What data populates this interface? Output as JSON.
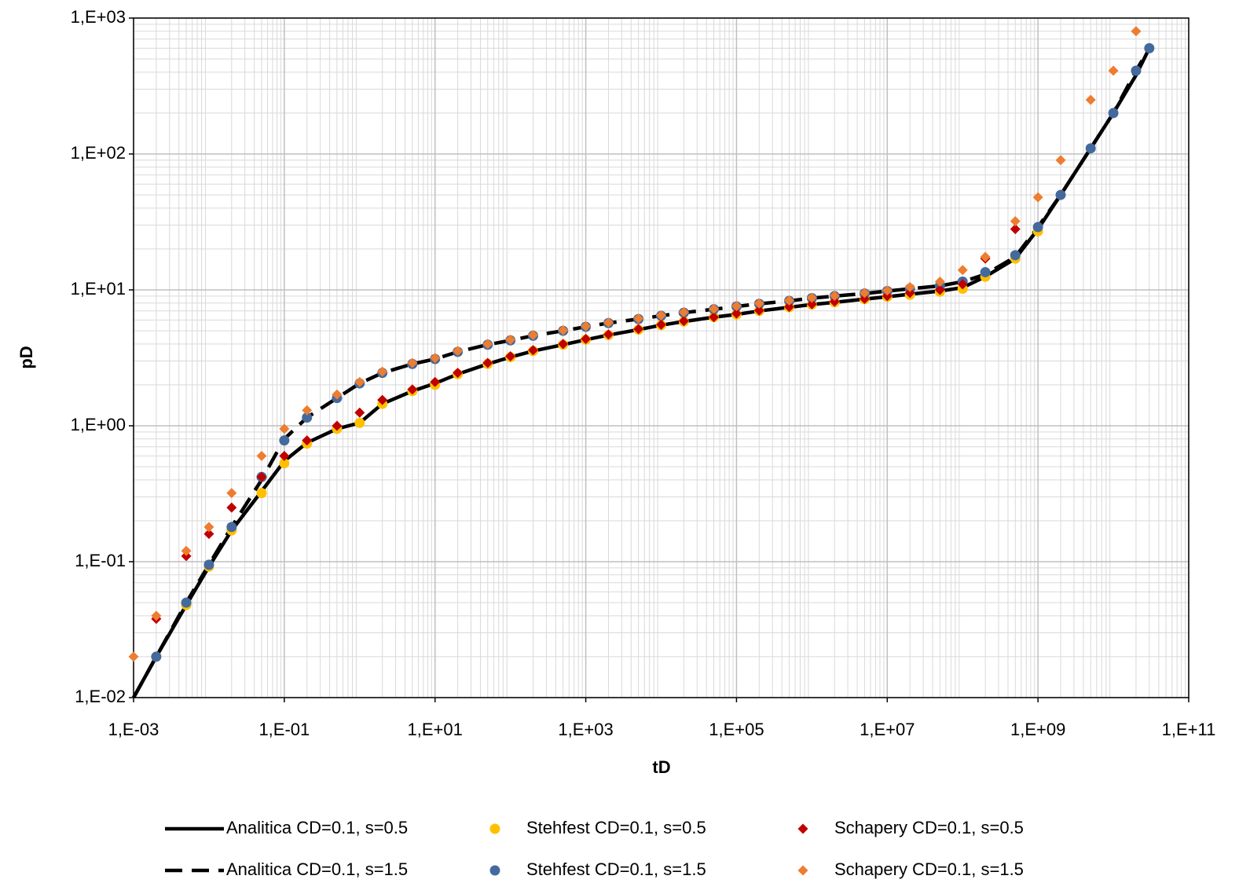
{
  "chart_data": {
    "type": "scatter",
    "x_label": "tD",
    "y_label": "pD",
    "xscale": "log",
    "yscale": "log",
    "grid": true,
    "xlim": [
      0.001,
      100000000000
    ],
    "ylim": [
      0.01,
      1000
    ],
    "xticks": [
      {
        "value": 0.001,
        "label": "1,E-03"
      },
      {
        "value": 0.1,
        "label": "1,E-01"
      },
      {
        "value": 10,
        "label": "1,E+01"
      },
      {
        "value": 1000,
        "label": "1,E+03"
      },
      {
        "value": 100000,
        "label": "1,E+05"
      },
      {
        "value": 10000000,
        "label": "1,E+07"
      },
      {
        "value": 1000000000,
        "label": "1,E+09"
      },
      {
        "value": 100000000000,
        "label": "1,E+11"
      }
    ],
    "yticks": [
      {
        "value": 0.01,
        "label": "1,E-02"
      },
      {
        "value": 0.1,
        "label": "1,E-01"
      },
      {
        "value": 1,
        "label": "1,E+00"
      },
      {
        "value": 10,
        "label": "1,E+01"
      },
      {
        "value": 100,
        "label": "1,E+02"
      },
      {
        "value": 1000,
        "label": "1,E+03"
      }
    ],
    "x": [
      0.001,
      0.002,
      0.005,
      0.01,
      0.02,
      0.05,
      0.1,
      0.2,
      0.5,
      1,
      2,
      5,
      10,
      20,
      50,
      100,
      200,
      500,
      1000,
      2000,
      5000,
      10000,
      20000,
      50000,
      100000,
      200000,
      500000,
      1000000,
      2000000,
      5000000,
      10000000,
      20000000,
      50000000,
      100000000,
      200000000,
      500000000,
      1000000000,
      2000000000,
      5000000000,
      10000000000,
      20000000000,
      30000000000
    ],
    "series": [
      {
        "name": "Analitica CD=0.1, s=0.5",
        "style": "solid",
        "color": "#000000",
        "values": [
          0.01,
          0.02,
          0.048,
          0.092,
          0.17,
          0.33,
          0.55,
          0.75,
          0.95,
          1.05,
          1.45,
          1.8,
          2.05,
          2.4,
          2.85,
          3.2,
          3.55,
          3.95,
          4.3,
          4.65,
          5.1,
          5.5,
          5.85,
          6.3,
          6.6,
          7.0,
          7.45,
          7.8,
          8.1,
          8.55,
          8.9,
          9.3,
          9.8,
          10.4,
          12.5,
          17,
          28,
          50,
          110,
          200,
          380,
          600
        ]
      },
      {
        "name": "Analitica CD=0.1, s=1.5",
        "style": "dashed",
        "color": "#000000",
        "values": [
          0.01,
          0.02,
          0.05,
          0.095,
          0.18,
          0.4,
          0.8,
          1.15,
          1.6,
          2.05,
          2.45,
          2.85,
          3.1,
          3.5,
          3.95,
          4.25,
          4.6,
          5.0,
          5.35,
          5.7,
          6.1,
          6.45,
          6.8,
          7.2,
          7.55,
          7.9,
          8.3,
          8.7,
          9.0,
          9.4,
          9.8,
          10.2,
          10.7,
          11.5,
          13.0,
          17.5,
          29,
          50,
          110,
          200,
          410,
          600
        ]
      },
      {
        "name": "Stehfest CD=0.1, s=0.5",
        "style": "circle",
        "color": "#ffc000",
        "values": [
          null,
          0.02,
          0.048,
          0.092,
          0.17,
          0.32,
          0.53,
          0.74,
          0.95,
          1.05,
          1.45,
          1.8,
          2.0,
          2.4,
          2.85,
          3.2,
          3.55,
          3.95,
          4.3,
          4.65,
          5.1,
          5.5,
          5.85,
          6.3,
          6.6,
          7.0,
          7.45,
          7.8,
          8.1,
          8.55,
          8.9,
          9.2,
          9.7,
          10.2,
          12.5,
          17,
          27,
          null,
          null,
          null,
          null,
          null
        ]
      },
      {
        "name": "Stehfest CD=0.1, s=1.5",
        "style": "circle",
        "color": "#44699c",
        "values": [
          null,
          0.02,
          0.05,
          0.095,
          0.18,
          0.42,
          0.78,
          1.15,
          1.6,
          2.05,
          2.45,
          2.85,
          3.1,
          3.5,
          3.95,
          4.25,
          4.6,
          5.0,
          5.35,
          5.7,
          6.1,
          6.45,
          6.8,
          7.2,
          7.55,
          7.9,
          8.3,
          8.7,
          9.0,
          9.4,
          9.8,
          10.2,
          10.7,
          11.5,
          13.5,
          18,
          29,
          50,
          110,
          200,
          410,
          600
        ]
      },
      {
        "name": "Schapery CD=0.1, s=0.5",
        "style": "diamond",
        "color": "#c00000",
        "values": [
          null,
          0.038,
          0.11,
          0.16,
          0.25,
          0.42,
          0.6,
          0.78,
          1.0,
          1.25,
          1.55,
          1.85,
          2.1,
          2.45,
          2.9,
          3.25,
          3.6,
          4.0,
          4.35,
          4.7,
          5.15,
          5.55,
          5.9,
          6.3,
          6.7,
          7.05,
          7.5,
          7.85,
          8.2,
          8.6,
          9.0,
          9.5,
          10.0,
          11.0,
          17,
          28,
          null,
          null,
          null,
          null,
          null,
          null
        ]
      },
      {
        "name": "Schapery CD=0.1, s=1.5",
        "style": "diamond",
        "color": "#ed7d31",
        "values": [
          0.02,
          0.04,
          0.12,
          0.18,
          0.32,
          0.6,
          0.95,
          1.3,
          1.7,
          2.1,
          2.5,
          2.9,
          3.15,
          3.55,
          4.0,
          4.3,
          4.65,
          5.05,
          5.4,
          5.75,
          6.15,
          6.5,
          6.85,
          7.25,
          7.6,
          7.95,
          8.35,
          8.75,
          9.05,
          9.5,
          9.9,
          10.5,
          11.5,
          14,
          17.5,
          32,
          48,
          90,
          250,
          410,
          800,
          null
        ]
      }
    ]
  }
}
